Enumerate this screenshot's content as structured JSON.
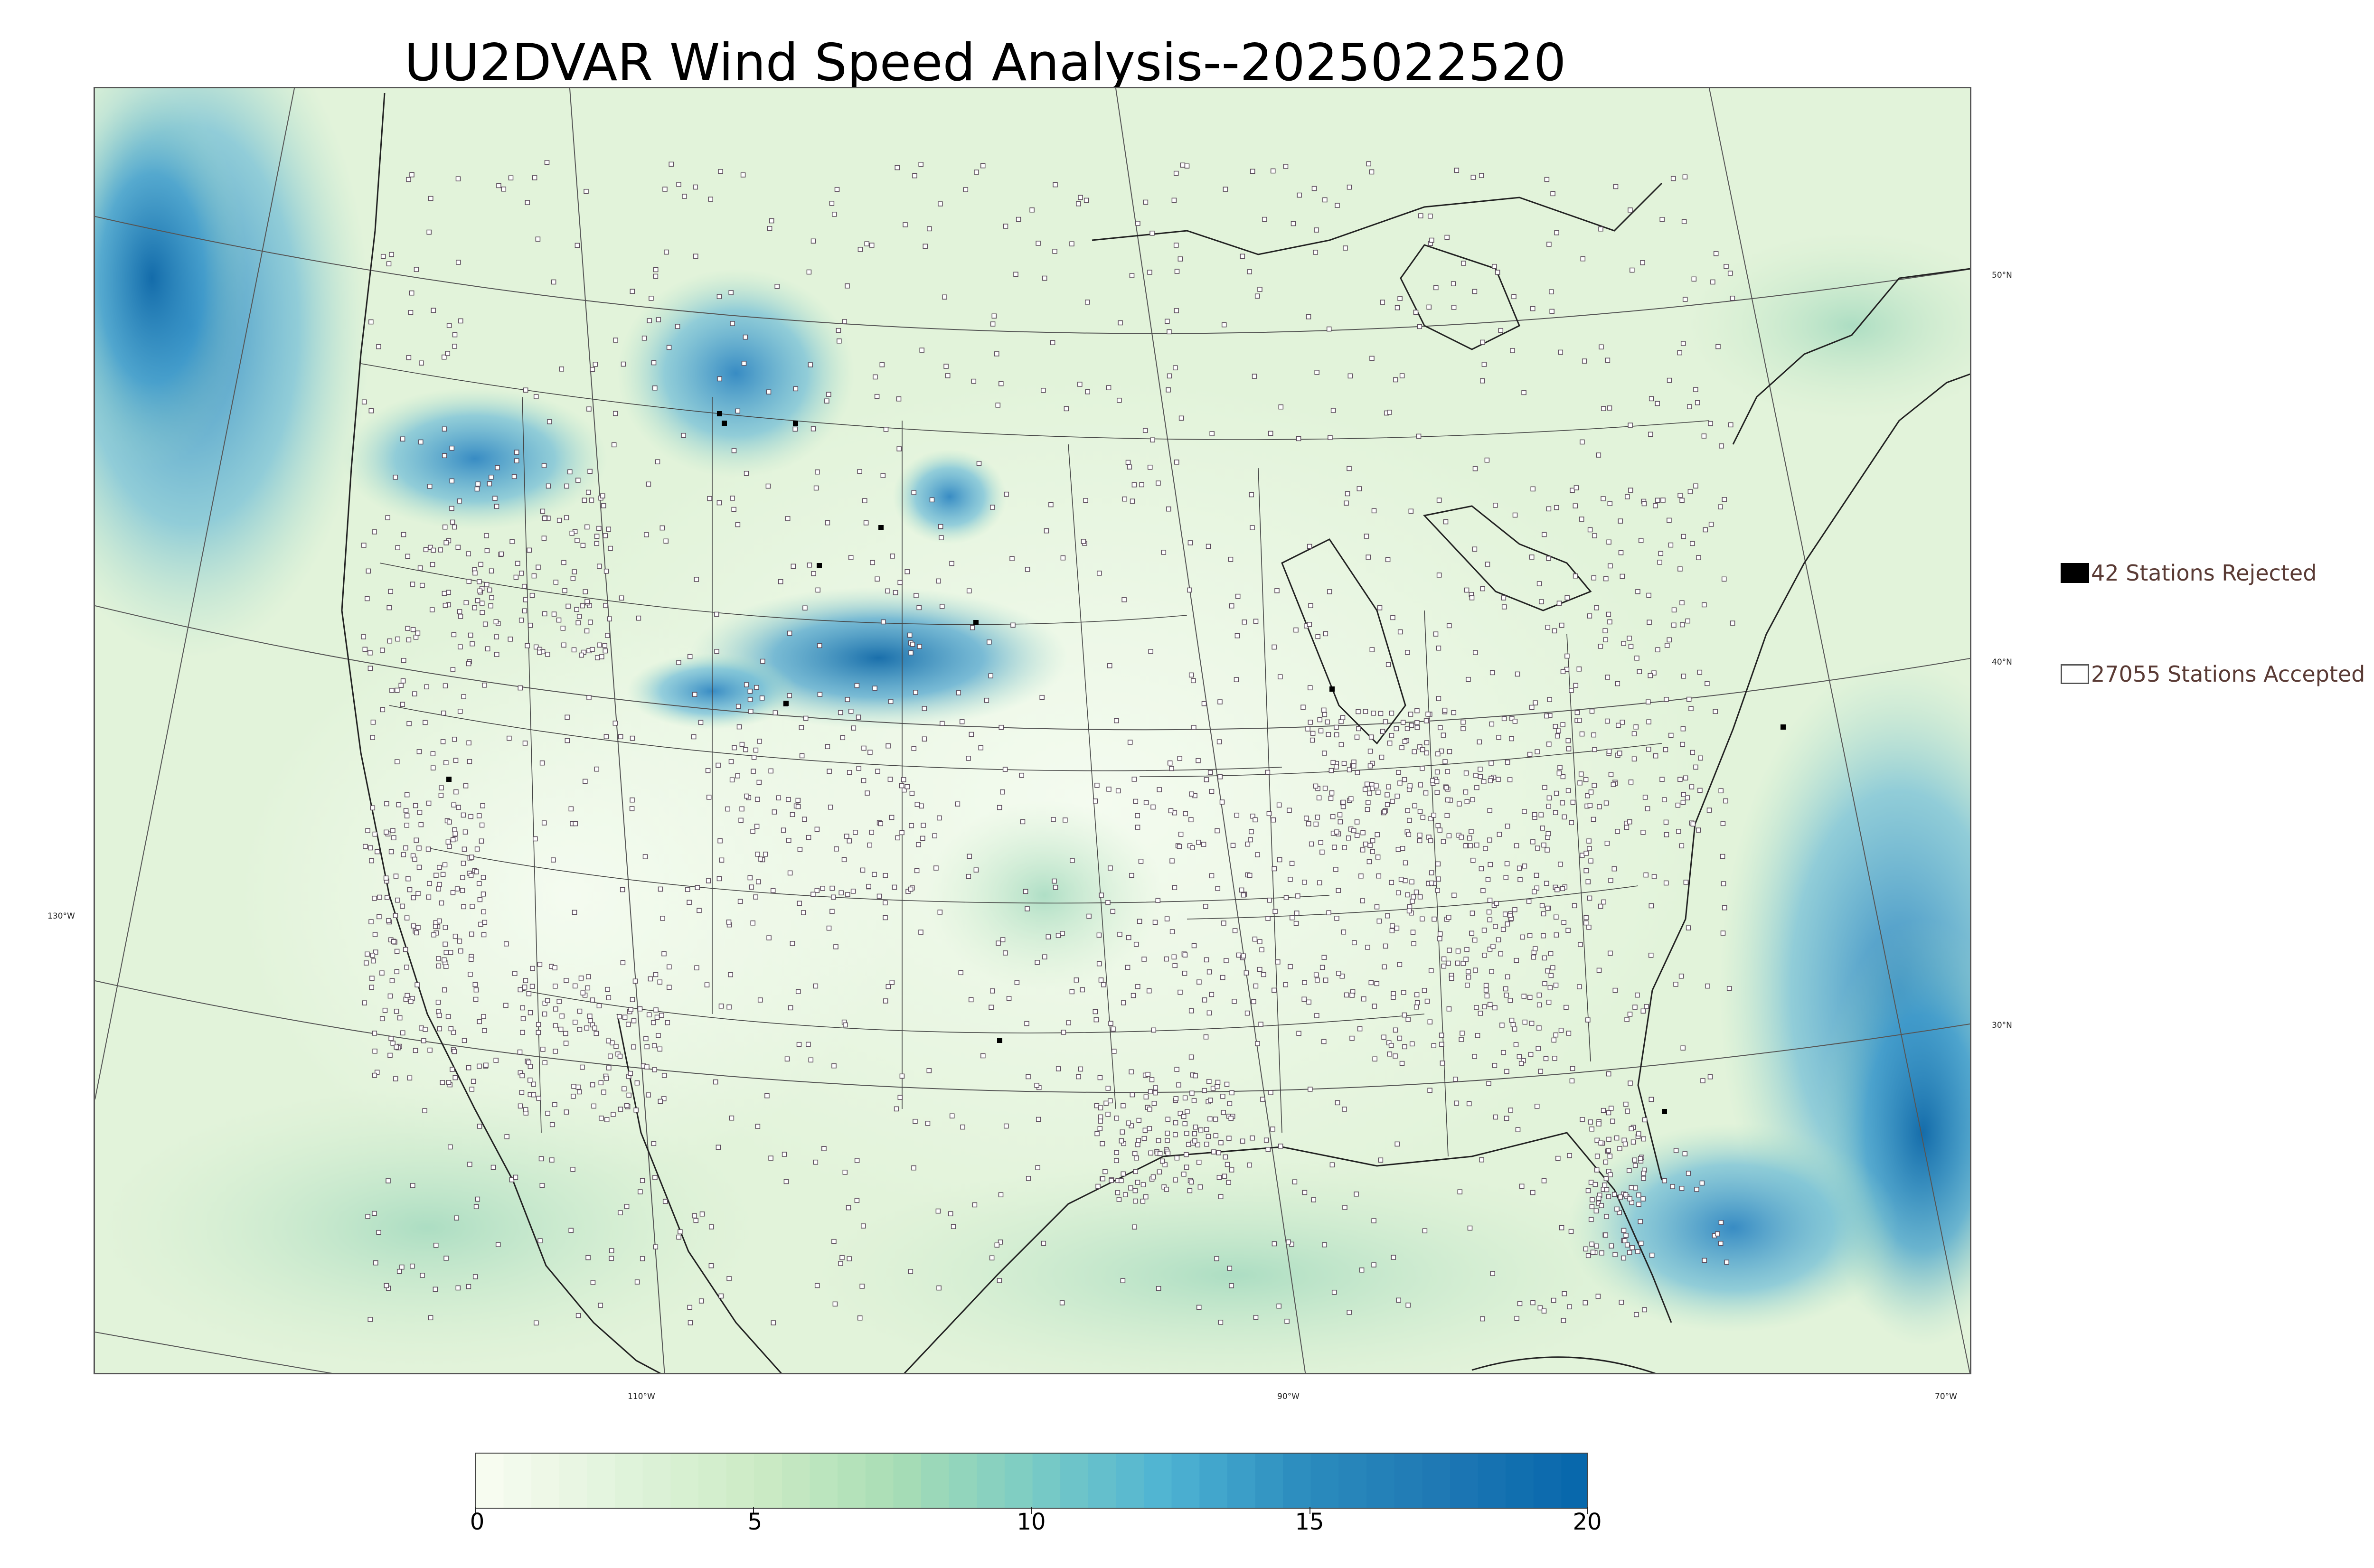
{
  "title": "UU2DVAR Wind Speed Analysis--2025022520",
  "map": {
    "lon_labels": [
      "130°W",
      "110°W",
      "90°W",
      "70°W"
    ],
    "lat_labels": [
      "50°N",
      "40°N",
      "30°N"
    ],
    "colors": {
      "calm": "#f4fbef",
      "moderate": "#a8dcc0",
      "strong": "#4fa9d3",
      "very_strong": "#0f68a8",
      "boundary": "#3a3a3a",
      "station_outline": "#5a4a5a"
    }
  },
  "legend": {
    "rejected": {
      "label": "42 Stations Rejected",
      "icon": "filled-square",
      "color": "#000000"
    },
    "accepted": {
      "label": "27055 Stations Accepted",
      "icon": "open-square",
      "color": "#ffffff"
    }
  },
  "colorbar": {
    "min": 0,
    "max": 20,
    "ticks": [
      "0",
      "5",
      "10",
      "15",
      "20"
    ],
    "stops": [
      "#f7fcf0",
      "#e0f3db",
      "#ccebc5",
      "#a8ddb5",
      "#7bccc4",
      "#4eb3d3",
      "#2b8cbe",
      "#1f78b4",
      "#0868ac"
    ]
  }
}
